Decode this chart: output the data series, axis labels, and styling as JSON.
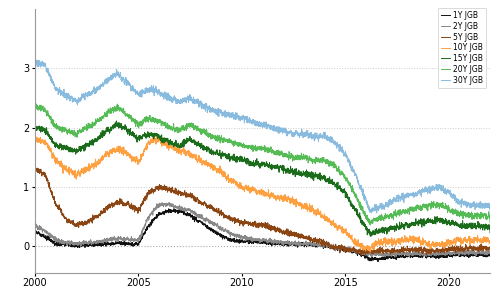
{
  "title": "",
  "ylabel": "",
  "xlabel": "",
  "xlim": [
    10957,
    18993
  ],
  "ylim": [
    -0.45,
    4.0
  ],
  "yticks": [
    0,
    1,
    2,
    3
  ],
  "series": {
    "1Y JGB": {
      "color": "#111111",
      "lw": 0.7
    },
    "2Y JGB": {
      "color": "#888888",
      "lw": 0.7
    },
    "5Y JGB": {
      "color": "#8B4513",
      "lw": 0.7
    },
    "10Y JGB": {
      "color": "#FFA040",
      "lw": 0.7
    },
    "15Y JGB": {
      "color": "#1a6b1a",
      "lw": 0.7
    },
    "20Y JGB": {
      "color": "#55bb55",
      "lw": 0.7
    },
    "30Y JGB": {
      "color": "#88BBDD",
      "lw": 0.7
    }
  },
  "background": "#ffffff",
  "grid_color": "#cccccc",
  "zero_line_color": "#aaaaaa",
  "xtick_labels": [
    "2000",
    "2005",
    "2010",
    "2015",
    "2020"
  ],
  "xtick_positions": [
    10957,
    12784,
    14610,
    16436,
    18262
  ]
}
